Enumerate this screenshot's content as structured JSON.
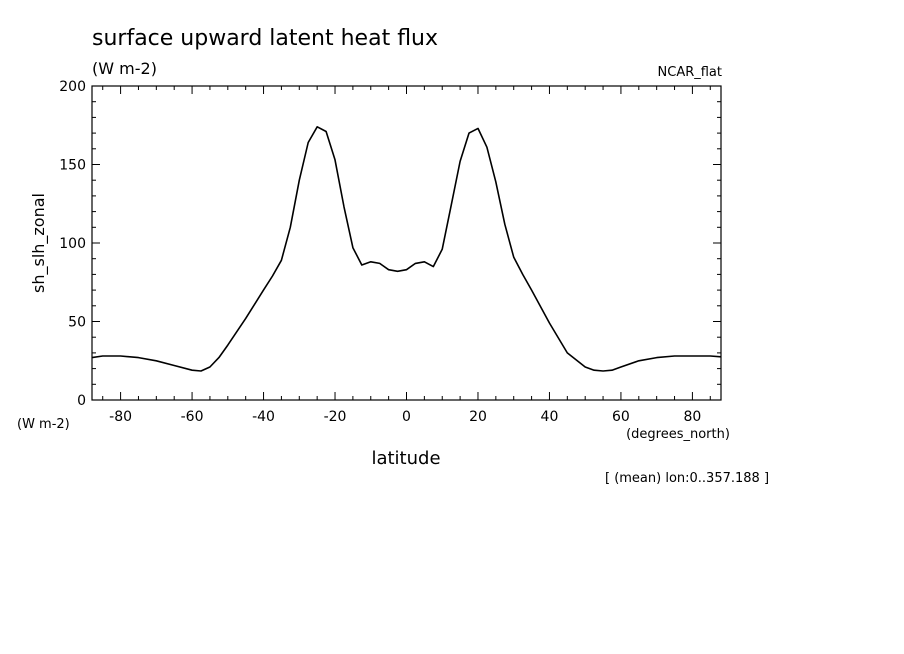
{
  "chart_data": {
    "type": "line",
    "title": "surface upward latent heat flux",
    "subtitle": "(W m-2)",
    "dataset": "NCAR_flat",
    "xlabel": "latitude",
    "xunits": "(degrees_north)",
    "ylabel": "sh_slh_zonal",
    "yunits": "(W m-2)",
    "footnote": "[ (mean) lon:0..357.188 ]",
    "xlim": [
      -88,
      88
    ],
    "ylim": [
      0,
      200
    ],
    "xticks": [
      -80,
      -60,
      -40,
      -20,
      0,
      20,
      40,
      60,
      80
    ],
    "xtick_labels": [
      "-80",
      "-60",
      "-40",
      "-20",
      "0",
      "20",
      "40",
      "60",
      "80"
    ],
    "yticks": [
      0,
      50,
      100,
      150,
      200
    ],
    "ytick_labels": [
      "0",
      "50",
      "100",
      "150",
      "200"
    ],
    "grid": false,
    "series": [
      {
        "x": [
          -88,
          -85,
          -80,
          -75,
          -70,
          -65,
          -60,
          -57.5,
          -55,
          -52.5,
          -50,
          -45,
          -40,
          -37.5,
          -35,
          -32.5,
          -30,
          -27.5,
          -25,
          -22.5,
          -20,
          -17.5,
          -15,
          -12.5,
          -10,
          -7.5,
          -5,
          -2.5,
          0,
          2.5,
          5,
          7.5,
          10,
          12.5,
          15,
          17.5,
          20,
          22.5,
          25,
          27.5,
          30,
          32.5,
          35,
          40,
          45,
          50,
          52.5,
          55,
          57.5,
          60,
          65,
          70,
          75,
          80,
          85,
          88
        ],
        "y": [
          27,
          28,
          28,
          27,
          25,
          22,
          19,
          18.5,
          21,
          27,
          35,
          52,
          70,
          79,
          89,
          110,
          140,
          164,
          174,
          171,
          153,
          123,
          97,
          86,
          88,
          87,
          83,
          82,
          83,
          87,
          88,
          85,
          96,
          124,
          152,
          170,
          173,
          161,
          139,
          112,
          91,
          80,
          70,
          49,
          30,
          21,
          19,
          18.5,
          19,
          21,
          25,
          27,
          28,
          28,
          28,
          27.5
        ]
      }
    ]
  }
}
